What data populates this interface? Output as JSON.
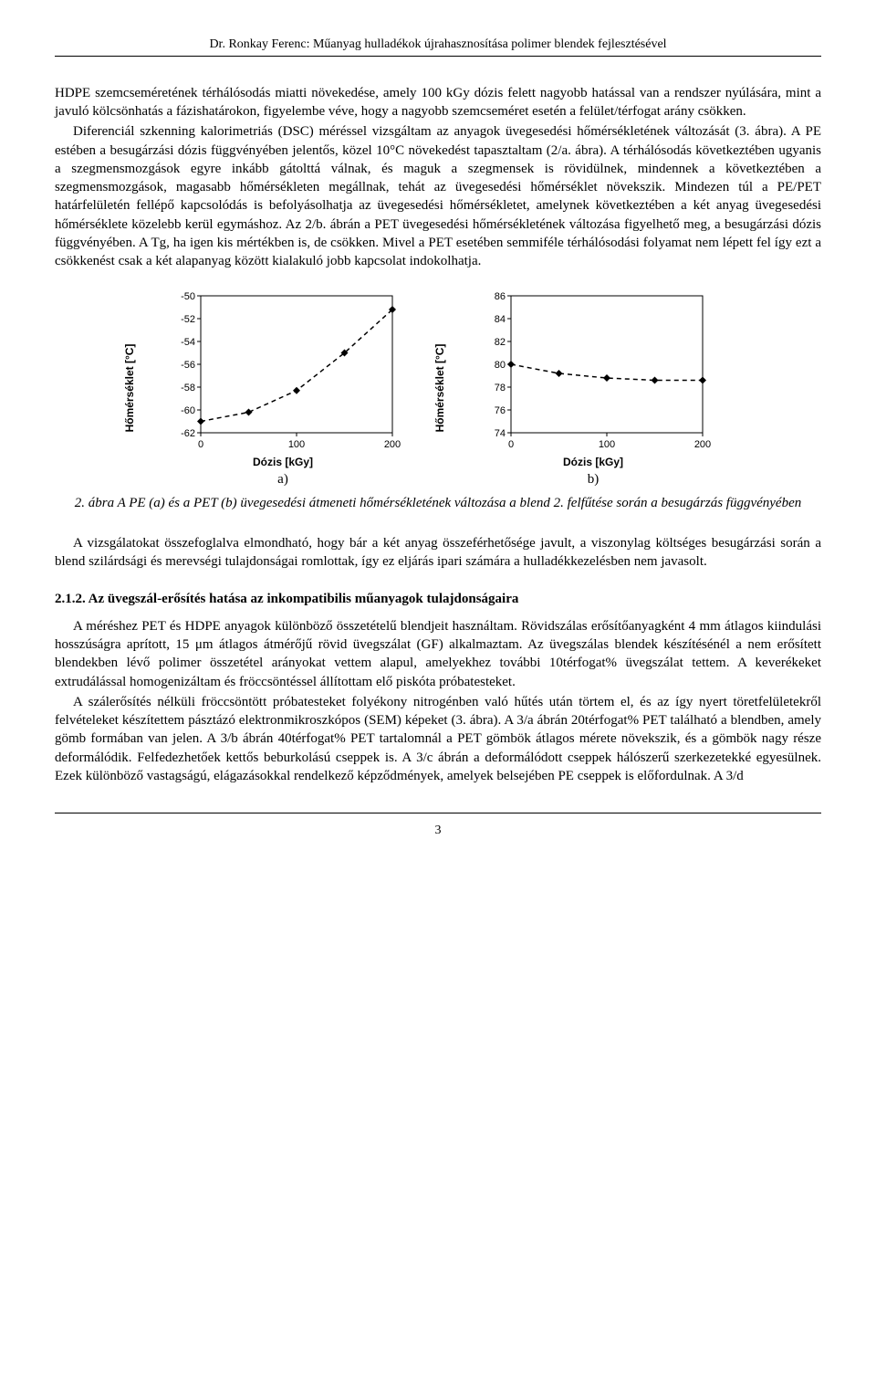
{
  "header": {
    "author_title": "Dr. Ronkay Ferenc: Műanyag hulladékok újrahasznosítása polimer blendek fejlesztésével"
  },
  "main": {
    "para1": "HDPE szemcseméretének térhálósodás miatti növekedése, amely 100 kGy dózis felett nagyobb hatással van a rendszer nyúlására, mint a javuló kölcsönhatás a fázishatárokon, figyelembe véve, hogy a nagyobb szemcseméret esetén a felület/térfogat arány csökken.",
    "para2": "Diferenciál szkenning kalorimetriás (DSC) méréssel vizsgáltam az anyagok üvegesedési hőmérsékletének változását (3. ábra). A PE estében a besugárzási dózis függvényében jelentős, közel 10°C növekedést tapasztaltam (2/a. ábra). A térhálósodás következtében ugyanis a szegmensmozgások egyre inkább gátolttá válnak, és maguk a szegmensek is rövidülnek, mindennek a következtében a szegmensmozgások, magasabb hőmérsékleten megállnak, tehát az üvegesedési hőmérséklet növekszik. Mindezen túl a PE/PET határfelületén fellépő kapcsolódás is befolyásolhatja az üvegesedési hőmérsékletet, amelynek következtében a két anyag üvegesedési hőmérséklete közelebb kerül egymáshoz. Az 2/b. ábrán a PET üvegesedési hőmérsékletének változása figyelhető meg, a besugárzási dózis függvényében. A Tg, ha igen kis mértékben is, de csökken. Mivel a PET esetében semmiféle térhálósodási folyamat nem lépett fel így ezt a csökkenést csak a két alapanyag között kialakuló jobb kapcsolat indokolhatja.",
    "fig_caption": "2. ábra A PE (a) és a PET (b) üvegesedési átmeneti hőmérsékletének változása a blend 2. felfűtése során a besugárzás függvényében",
    "para3": "A vizsgálatokat összefoglalva elmondható, hogy bár a két anyag összeférhetősége javult, a viszonylag költséges besugárzási során a blend szilárdsági és merevségi tulajdonságai romlottak, így ez eljárás ipari számára a hulladékkezelésben nem javasolt.",
    "section_heading": "2.1.2. Az üvegszál-erősítés hatása az inkompatibilis műanyagok tulajdonságaira",
    "para4": "A méréshez PET és HDPE anyagok különböző összetételű blendjeit használtam. Rövidszálas erősítőanyagként 4 mm átlagos kiindulási hosszúságra aprított, 15 μm átlagos átmérőjű rövid üvegszálat (GF) alkalmaztam. Az üvegszálas blendek készítésénél a nem erősített blendekben lévő polimer összetétel arányokat vettem alapul, amelyekhez további 10térfogat% üvegszálat tettem. A keverékeket extrudálással homogenizáltam és fröccsöntéssel állítottam elő piskóta próbatesteket.",
    "para5": "A szálerősítés nélküli fröccsöntött próbatesteket folyékony nitrogénben való hűtés után törtem el, és az így nyert töretfelületekről felvételeket készítettem pásztázó elektronmikroszkópos (SEM) képeket (3. ábra). A 3/a ábrán 20térfogat% PET található a blendben, amely gömb formában van jelen. A 3/b ábrán 40térfogat% PET tartalomnál a PET gömbök átlagos mérete növekszik, és a gömbök nagy része deformálódik. Felfedezhetőek kettős beburkolású cseppek is. A 3/c ábrán a deformálódott cseppek hálószerű szerkezetekké egyesülnek. Ezek különböző vastagságú, elágazásokkal rendelkező képződmények, amelyek belsejében PE cseppek is előfordulnak. A 3/d"
  },
  "charts": {
    "a": {
      "type": "line",
      "sub_label": "a)",
      "y_label": "Hőmérséklet [°C]",
      "x_label": "Dózis [kGy]",
      "xlim": [
        0,
        200
      ],
      "ylim": [
        -62,
        -50
      ],
      "x_ticks": [
        0,
        100,
        200
      ],
      "y_ticks": [
        -62,
        -60,
        -58,
        -56,
        -54,
        -52,
        -50
      ],
      "marker_style": "diamond",
      "marker_color": "#000000",
      "line_style": "dashed",
      "line_color": "#000000",
      "points": [
        {
          "x": 0,
          "y": -61.0
        },
        {
          "x": 50,
          "y": -60.2
        },
        {
          "x": 100,
          "y": -58.3
        },
        {
          "x": 150,
          "y": -55.0
        },
        {
          "x": 200,
          "y": -51.2
        }
      ],
      "background_color": "#ffffff",
      "border_color": "#000000"
    },
    "b": {
      "type": "line",
      "sub_label": "b)",
      "y_label": "Hőmérséklet [°C]",
      "x_label": "Dózis [kGy]",
      "xlim": [
        0,
        200
      ],
      "ylim": [
        74,
        86
      ],
      "x_ticks": [
        0,
        100,
        200
      ],
      "y_ticks": [
        74,
        76,
        78,
        80,
        82,
        84,
        86
      ],
      "marker_style": "diamond",
      "marker_color": "#000000",
      "line_style": "dashed",
      "line_color": "#000000",
      "points": [
        {
          "x": 0,
          "y": 80.0
        },
        {
          "x": 50,
          "y": 79.2
        },
        {
          "x": 100,
          "y": 78.8
        },
        {
          "x": 150,
          "y": 78.6
        },
        {
          "x": 200,
          "y": 78.6
        }
      ],
      "background_color": "#ffffff",
      "border_color": "#000000"
    }
  },
  "footer": {
    "page_number": "3"
  }
}
